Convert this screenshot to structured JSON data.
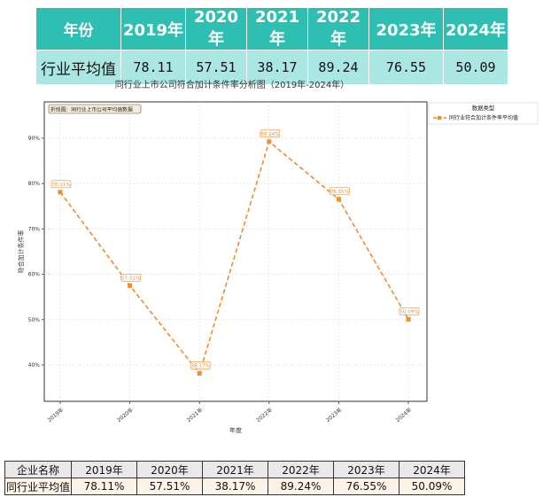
{
  "top_table": {
    "header": [
      "年份",
      "2019年",
      "2020年",
      "2021年",
      "2022年",
      "2023年",
      "2024年"
    ],
    "row": [
      "行业平均值",
      "78.11",
      "57.51",
      "38.17",
      "89.24",
      "76.55",
      "50.09"
    ]
  },
  "chart_data": {
    "type": "line",
    "title": "同行业上市公司符合加计条件率分析图（2019年-2024年）",
    "xlabel": "年度",
    "ylabel": "符合加计条件率",
    "categories": [
      "2019年",
      "2020年",
      "2021年",
      "2022年",
      "2023年",
      "2024年"
    ],
    "yticks": [
      "40%",
      "50%",
      "60%",
      "70%",
      "80%",
      "90%"
    ],
    "ylim": [
      32,
      98
    ],
    "grid": true,
    "annotation": "折线图：同行业上市公司平均值数据",
    "legend": {
      "title": "数据类型",
      "position": "outside-top-right"
    },
    "series": [
      {
        "name": "同行业符合加计条件率平均值",
        "values": [
          78.11,
          57.51,
          38.17,
          89.24,
          76.55,
          50.09
        ],
        "labels": [
          "78.11%",
          "57.51%",
          "38.17%",
          "89.24%",
          "76.55%",
          "50.09%"
        ],
        "color": "#f28a2e"
      }
    ]
  },
  "bottom_table": {
    "header": [
      "企业名称",
      "2019年",
      "2020年",
      "2021年",
      "2022年",
      "2023年",
      "2024年"
    ],
    "row": [
      "同行业平均值",
      "78.11%",
      "57.51%",
      "38.17%",
      "89.24%",
      "76.55%",
      "50.09%"
    ]
  },
  "colors": {
    "header_teal": "#2ebfb2",
    "row_teal": "#abe7e2",
    "line_orange": "#f28a2e",
    "bottom_row_bg": "#fdf2e6"
  }
}
